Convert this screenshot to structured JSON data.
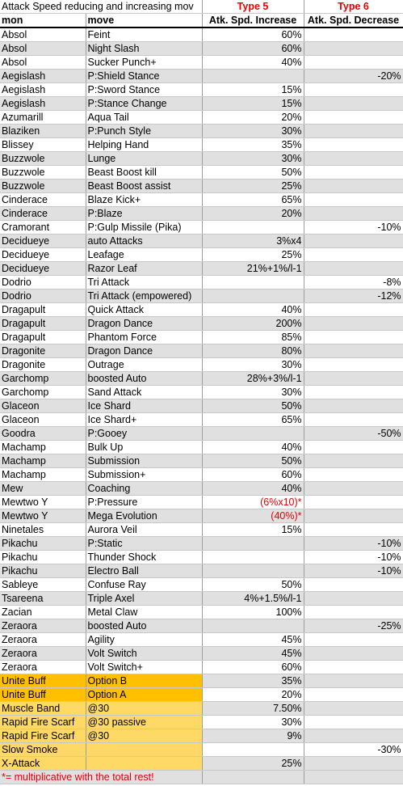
{
  "title": "Attack Speed reducing and increasing mov",
  "type5_label": "Type 5",
  "type6_label": "Type 6",
  "headers": [
    "mon",
    "move",
    "Atk. Spd. Increase",
    "Atk. Spd. Decrease"
  ],
  "rows": [
    {
      "mon": "Absol",
      "move": "Feint",
      "inc": "60%",
      "dec": ""
    },
    {
      "mon": "Absol",
      "move": "Night Slash",
      "inc": "60%",
      "dec": ""
    },
    {
      "mon": "Absol",
      "move": "Sucker Punch+",
      "inc": "40%",
      "dec": ""
    },
    {
      "mon": "Aegislash",
      "move": "P:Shield Stance",
      "inc": "",
      "dec": "-20%"
    },
    {
      "mon": "Aegislash",
      "move": "P:Sword Stance",
      "inc": "15%",
      "dec": ""
    },
    {
      "mon": "Aegislash",
      "move": "P:Stance Change",
      "inc": "15%",
      "dec": ""
    },
    {
      "mon": "Azumarill",
      "move": "Aqua Tail",
      "inc": "20%",
      "dec": ""
    },
    {
      "mon": "Blaziken",
      "move": "P:Punch Style",
      "inc": "30%",
      "dec": ""
    },
    {
      "mon": "Blissey",
      "move": "Helping Hand",
      "inc": "35%",
      "dec": ""
    },
    {
      "mon": "Buzzwole",
      "move": "Lunge",
      "inc": "30%",
      "dec": ""
    },
    {
      "mon": "Buzzwole",
      "move": "Beast Boost kill",
      "inc": "50%",
      "dec": ""
    },
    {
      "mon": "Buzzwole",
      "move": "Beast Boost assist",
      "inc": "25%",
      "dec": ""
    },
    {
      "mon": "Cinderace",
      "move": "Blaze Kick+",
      "inc": "65%",
      "dec": ""
    },
    {
      "mon": "Cinderace",
      "move": "P:Blaze",
      "inc": "20%",
      "dec": ""
    },
    {
      "mon": "Cramorant",
      "move": "P:Gulp Missile (Pika)",
      "inc": "",
      "dec": "-10%"
    },
    {
      "mon": "Decidueye",
      "move": "auto Attacks",
      "inc": "3%x4",
      "dec": ""
    },
    {
      "mon": "Decidueye",
      "move": "Leafage",
      "inc": "25%",
      "dec": ""
    },
    {
      "mon": "Decidueye",
      "move": "Razor Leaf",
      "inc": "21%+1%/l-1",
      "dec": ""
    },
    {
      "mon": "Dodrio",
      "move": "Tri Attack",
      "inc": "",
      "dec": "-8%"
    },
    {
      "mon": "Dodrio",
      "move": "Tri Attack (empowered)",
      "inc": "",
      "dec": "-12%"
    },
    {
      "mon": "Dragapult",
      "move": "Quick Attack",
      "inc": "40%",
      "dec": ""
    },
    {
      "mon": "Dragapult",
      "move": "Dragon Dance",
      "inc": "200%",
      "dec": ""
    },
    {
      "mon": "Dragapult",
      "move": "Phantom Force",
      "inc": "85%",
      "dec": ""
    },
    {
      "mon": "Dragonite",
      "move": "Dragon Dance",
      "inc": "80%",
      "dec": ""
    },
    {
      "mon": "Dragonite",
      "move": "Outrage",
      "inc": "30%",
      "dec": ""
    },
    {
      "mon": "Garchomp",
      "move": "boosted Auto",
      "inc": "28%+3%/l-1",
      "dec": ""
    },
    {
      "mon": "Garchomp",
      "move": "Sand Attack",
      "inc": "30%",
      "dec": ""
    },
    {
      "mon": "Glaceon",
      "move": "Ice Shard",
      "inc": "50%",
      "dec": ""
    },
    {
      "mon": "Glaceon",
      "move": "Ice Shard+",
      "inc": "65%",
      "dec": ""
    },
    {
      "mon": "Goodra",
      "move": "P:Gooey",
      "inc": "",
      "dec": "-50%"
    },
    {
      "mon": "Machamp",
      "move": "Bulk Up",
      "inc": "40%",
      "dec": ""
    },
    {
      "mon": "Machamp",
      "move": "Submission",
      "inc": "50%",
      "dec": ""
    },
    {
      "mon": "Machamp",
      "move": "Submission+",
      "inc": "60%",
      "dec": ""
    },
    {
      "mon": "Mew",
      "move": "Coaching",
      "inc": "40%",
      "dec": ""
    },
    {
      "mon": "Mewtwo Y",
      "move": "P:Pressure",
      "inc": "(6%x10)*",
      "dec": "",
      "red": true
    },
    {
      "mon": "Mewtwo Y",
      "move": "Mega Evolution",
      "inc": "(40%)*",
      "dec": "",
      "red": true
    },
    {
      "mon": "Ninetales",
      "move": "Aurora Veil",
      "inc": "15%",
      "dec": ""
    },
    {
      "mon": "Pikachu",
      "move": "P:Static",
      "inc": "",
      "dec": "-10%"
    },
    {
      "mon": "Pikachu",
      "move": "Thunder Shock",
      "inc": "",
      "dec": "-10%"
    },
    {
      "mon": "Pikachu",
      "move": "Electro Ball",
      "inc": "",
      "dec": "-10%"
    },
    {
      "mon": "Sableye",
      "move": "Confuse Ray",
      "inc": "50%",
      "dec": ""
    },
    {
      "mon": "Tsareena",
      "move": "Triple Axel",
      "inc": "4%+1.5%/l-1",
      "dec": ""
    },
    {
      "mon": "Zacian",
      "move": "Metal Claw",
      "inc": "100%",
      "dec": ""
    },
    {
      "mon": "Zeraora",
      "move": "boosted Auto",
      "inc": "",
      "dec": "-25%"
    },
    {
      "mon": "Zeraora",
      "move": "Agility",
      "inc": "45%",
      "dec": ""
    },
    {
      "mon": "Zeraora",
      "move": "Volt Switch",
      "inc": "45%",
      "dec": ""
    },
    {
      "mon": "Zeraora",
      "move": "Volt Switch+",
      "inc": "60%",
      "dec": ""
    },
    {
      "mon": "Unite Buff",
      "move": "Option B",
      "inc": "35%",
      "dec": "",
      "hl": "orange"
    },
    {
      "mon": "Unite Buff",
      "move": "Option A",
      "inc": "20%",
      "dec": "",
      "hl": "orange"
    },
    {
      "mon": "Muscle Band",
      "move": "@30",
      "inc": "7.50%",
      "dec": "",
      "hl": "yellow"
    },
    {
      "mon": "Rapid Fire Scarf",
      "move": "@30 passive",
      "inc": "30%",
      "dec": "",
      "hl": "yellow"
    },
    {
      "mon": "Rapid Fire Scarf",
      "move": "@30",
      "inc": "9%",
      "dec": "",
      "hl": "yellow"
    },
    {
      "mon": "Slow Smoke",
      "move": "",
      "inc": "",
      "dec": "-30%",
      "hl": "yellow"
    },
    {
      "mon": "X-Attack",
      "move": "",
      "inc": "25%",
      "dec": "",
      "hl": "yellow"
    }
  ],
  "footnote": "*= multiplicative with the total rest!",
  "colors": {
    "red_text": "#e60000",
    "row_shade": "#e0e0e0",
    "unite_buff": "#ffc000",
    "items": "#ffd966"
  }
}
